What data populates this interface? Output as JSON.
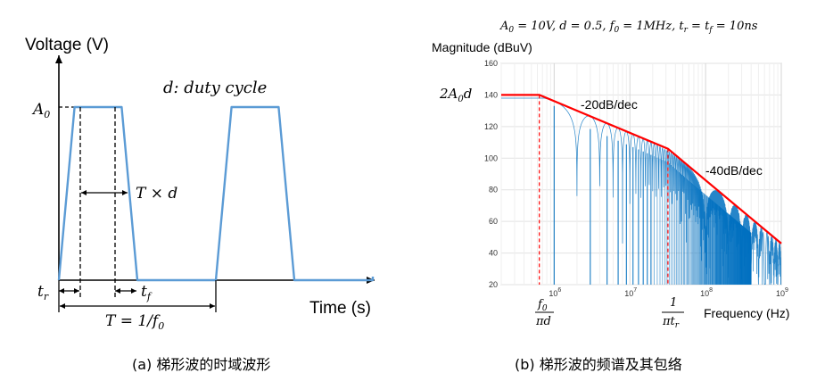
{
  "chart_data": [
    {
      "type": "line",
      "panel": "(a)",
      "caption": "(a) 梯形波的时域波形",
      "ylabel": "Voltage (V)",
      "xlabel": "Time (s)",
      "amplitude_label": "A_0",
      "duty_cycle_label": "d: duty cycle",
      "pulse_width_label": "T × d",
      "rise_label": "t_r",
      "fall_label": "t_f",
      "period_label": "T = 1/f_0",
      "color": "#5b9bd5",
      "series": [
        {
          "name": "trapezoid wave",
          "time": [
            0,
            0.1,
            0.4,
            0.5,
            1.0,
            1.1,
            1.4,
            1.5,
            2.0
          ],
          "voltage": [
            0,
            1,
            1,
            0,
            0,
            1,
            1,
            0,
            0
          ]
        }
      ]
    },
    {
      "type": "line",
      "panel": "(b)",
      "caption": "(b) 梯形波的频谱及其包络",
      "title": "A_0 = 10V, d = 0.5, f_0 = 1MHz, t_r = t_f = 10ns",
      "ylabel": "Magnitude (dBuV)",
      "xlabel": "Frequency (Hz)",
      "xscale": "log",
      "xlim": [
        200000,
        1000000000
      ],
      "ylim": [
        20,
        160
      ],
      "yticks": [
        20,
        40,
        60,
        80,
        100,
        120,
        140,
        160
      ],
      "xticks": [
        "10^6",
        "10^7",
        "10^8",
        "10^9"
      ],
      "spectrum_color": "#0070c0",
      "envelope_color": "#ff0000",
      "envelope": {
        "name": "envelope",
        "freq_hz": [
          200000,
          636620,
          31830000,
          1000000000
        ],
        "db": [
          140,
          140,
          106,
          46
        ]
      },
      "marker_lines_hz": [
        636620,
        31830000
      ],
      "annotations": {
        "level": "2A_0 d",
        "slope1": "-20dB/dec",
        "slope2": "-40dB/dec",
        "corner1": "f_0 / πd",
        "corner2": "1 / πt_r"
      }
    }
  ]
}
